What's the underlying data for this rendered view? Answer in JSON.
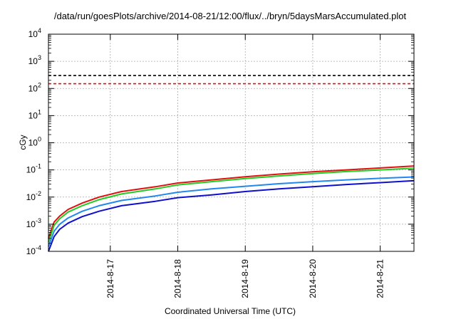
{
  "chart_data": {
    "type": "line",
    "title": "/data/run/goesPlots/archive/2014-08-21/12:00/flux/../bryn/5daysMarsAccumulated.plot",
    "xlabel": "Coordinated Universal Time (UTC)",
    "ylabel": "cGy",
    "y_scale": "log",
    "ylim": [
      0.0001,
      10000
    ],
    "xlim": [
      "2014-08-16 02:00",
      "2014-08-21 12:00"
    ],
    "grid": true,
    "x_ticks": [
      "2014-8-17",
      "2014-8-18",
      "2014-8-19",
      "2014-8-20",
      "2014-8-21"
    ],
    "y_ticks": [
      {
        "base": "10",
        "exp": "-4"
      },
      {
        "base": "10",
        "exp": "-3"
      },
      {
        "base": "10",
        "exp": "-2"
      },
      {
        "base": "10",
        "exp": "-1"
      },
      {
        "base": "10",
        "exp": "0"
      },
      {
        "base": "10",
        "exp": "1"
      },
      {
        "base": "10",
        "exp": "2"
      },
      {
        "base": "10",
        "exp": "3"
      },
      {
        "base": "10",
        "exp": "4"
      }
    ],
    "x": [
      "2014-08-16 02:00",
      "2014-08-16 04:00",
      "2014-08-16 06:00",
      "2014-08-16 09:00",
      "2014-08-16 14:00",
      "2014-08-16 20:00",
      "2014-08-17 04:00",
      "2014-08-17 16:00",
      "2014-08-18 00:00",
      "2014-08-18 12:00",
      "2014-08-19 00:00",
      "2014-08-19 12:00",
      "2014-08-20 00:00",
      "2014-08-20 12:00",
      "2014-08-21 00:00",
      "2014-08-21 12:00"
    ],
    "series": [
      {
        "color": "#e01010",
        "values": [
          0.0003,
          0.0012,
          0.002,
          0.0035,
          0.006,
          0.01,
          0.016,
          0.024,
          0.033,
          0.043,
          0.056,
          0.07,
          0.085,
          0.1,
          0.118,
          0.14
        ]
      },
      {
        "color": "#22cc22",
        "values": [
          0.00022,
          0.0009,
          0.0016,
          0.0028,
          0.0048,
          0.008,
          0.013,
          0.02,
          0.028,
          0.037,
          0.048,
          0.06,
          0.073,
          0.087,
          0.1,
          0.115
        ]
      },
      {
        "color": "#2288ee",
        "values": [
          0.00015,
          0.00055,
          0.001,
          0.0017,
          0.003,
          0.0048,
          0.0075,
          0.011,
          0.015,
          0.02,
          0.025,
          0.031,
          0.037,
          0.043,
          0.049,
          0.055
        ]
      },
      {
        "color": "#1010cc",
        "values": [
          0.0001,
          0.00035,
          0.00065,
          0.0011,
          0.0019,
          0.003,
          0.0048,
          0.007,
          0.0095,
          0.012,
          0.016,
          0.02,
          0.024,
          0.029,
          0.034,
          0.04
        ]
      }
    ],
    "reference_lines": [
      {
        "color": "#000000",
        "style": "dashed",
        "value": 300
      },
      {
        "color": "#e01010",
        "style": "dashed",
        "value": 150
      }
    ]
  }
}
